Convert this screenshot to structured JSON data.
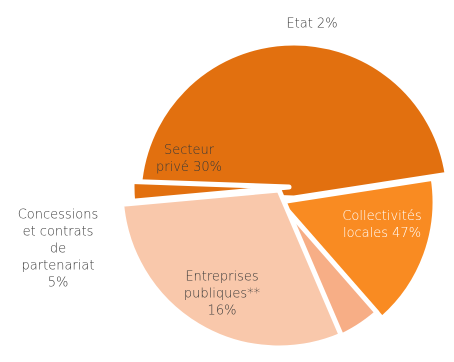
{
  "chart_data": {
    "type": "pie",
    "title": "",
    "slices": [
      {
        "label": "Collectivités locales",
        "label_lines": [
          "Collectivités",
          "locales  47%"
        ],
        "value": 47,
        "color": "#E2700F",
        "label_color": "#ffffff"
      },
      {
        "label": "Entreprises publiques**",
        "label_lines": [
          "Entreprises",
          "publiques**",
          "16%"
        ],
        "value": 16,
        "color": "#F98B22",
        "label_color": "#3a3a3a"
      },
      {
        "label": "Concessions et contrats de partenariat",
        "label_lines": [
          "Concessions",
          "et contrats",
          "de",
          "partenariat",
          "5%"
        ],
        "value": 5,
        "color": "#F7AE86",
        "label_color": "#3a3a3a"
      },
      {
        "label": "Secteur privé",
        "label_lines": [
          "Secteur",
          "privé 30%"
        ],
        "value": 30,
        "color": "#F9C8AB",
        "label_color": "#3a3a3a"
      },
      {
        "label": "Etat",
        "label_lines": [
          "Etat 2%"
        ],
        "value": 2,
        "color": "#E2700F",
        "label_color": "#3a3a3a"
      }
    ]
  }
}
